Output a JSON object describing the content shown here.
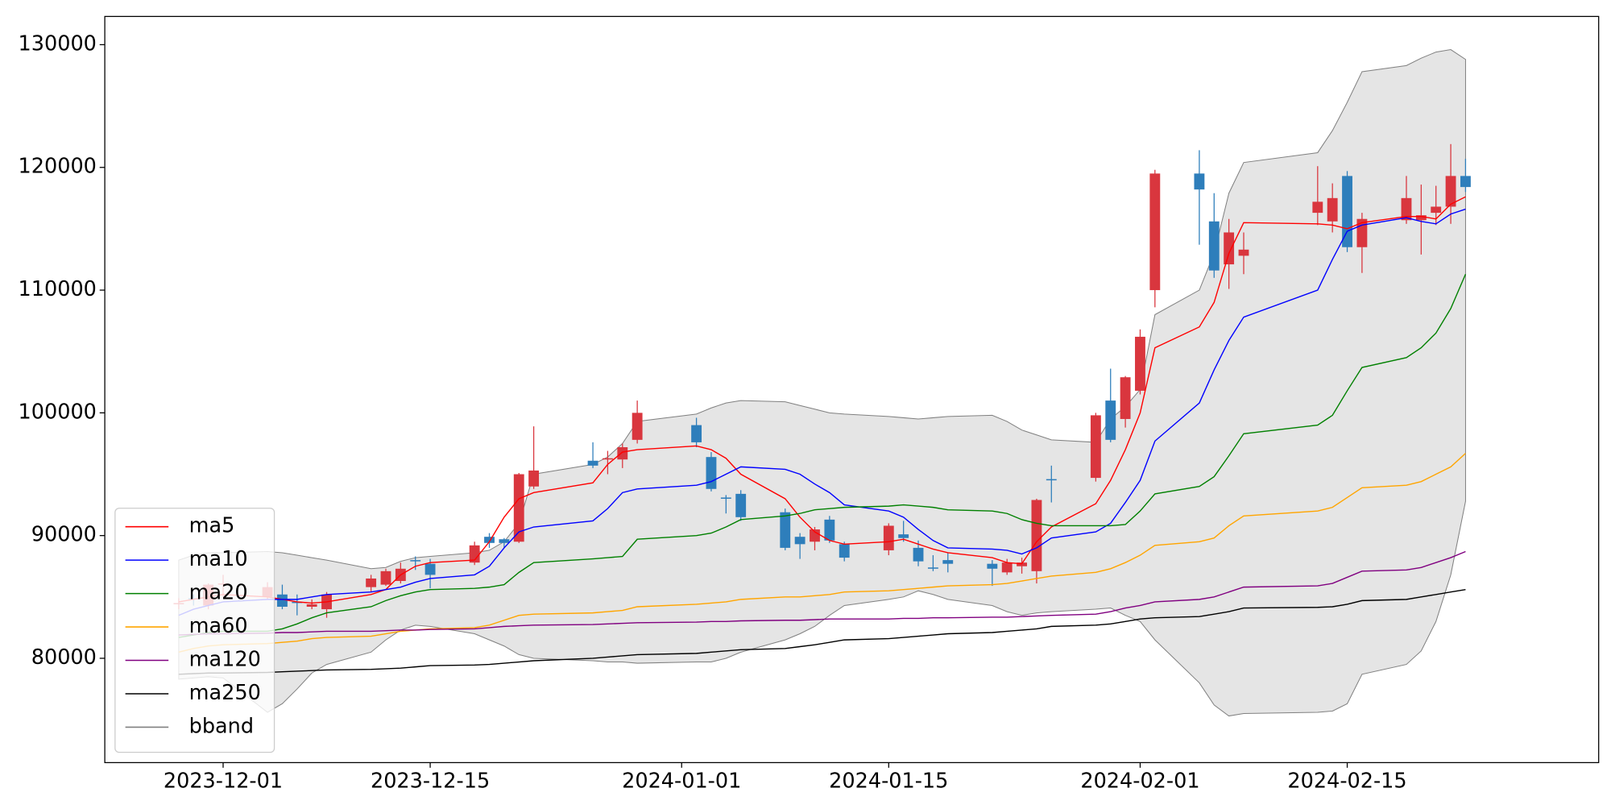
{
  "chart_data": {
    "type": "candlestick",
    "x": [
      "2023-11-28",
      "2023-11-29",
      "2023-11-30",
      "2023-12-01",
      "2023-12-04",
      "2023-12-05",
      "2023-12-06",
      "2023-12-07",
      "2023-12-08",
      "2023-12-11",
      "2023-12-12",
      "2023-12-13",
      "2023-12-14",
      "2023-12-15",
      "2023-12-18",
      "2023-12-19",
      "2023-12-20",
      "2023-12-21",
      "2023-12-22",
      "2023-12-26",
      "2023-12-27",
      "2023-12-28",
      "2023-12-29",
      "2024-01-02",
      "2024-01-03",
      "2024-01-04",
      "2024-01-05",
      "2024-01-08",
      "2024-01-09",
      "2024-01-10",
      "2024-01-11",
      "2024-01-12",
      "2024-01-15",
      "2024-01-16",
      "2024-01-17",
      "2024-01-18",
      "2024-01-19",
      "2024-01-22",
      "2024-01-23",
      "2024-01-24",
      "2024-01-25",
      "2024-01-26",
      "2024-01-29",
      "2024-01-30",
      "2024-01-31",
      "2024-02-01",
      "2024-02-02",
      "2024-02-05",
      "2024-02-06",
      "2024-02-07",
      "2024-02-08",
      "2024-02-13",
      "2024-02-14",
      "2024-02-15",
      "2024-02-16",
      "2024-02-19",
      "2024-02-20",
      "2024-02-21",
      "2024-02-22",
      "2024-02-23"
    ],
    "candles": {
      "up_color": "#d9363e",
      "down_color": "#2e7ebb",
      "open": [
        84400,
        84900,
        84300,
        86000,
        85000,
        85200,
        84600,
        84200,
        84000,
        85800,
        86000,
        86300,
        88000,
        87700,
        87800,
        89900,
        89700,
        89500,
        94000,
        96100,
        96200,
        96200,
        97800,
        99000,
        96400,
        93100,
        93400,
        91900,
        89900,
        89500,
        91300,
        89300,
        88800,
        90100,
        89000,
        87400,
        88000,
        87700,
        87000,
        87500,
        87100,
        94600,
        94700,
        101000,
        99500,
        101800,
        110000,
        119500,
        115600,
        112100,
        112800,
        116300,
        115600,
        119300,
        113500,
        115700,
        115700,
        116300,
        116800,
        119300
      ],
      "high": [
        84900,
        85200,
        86100,
        86800,
        86200,
        86000,
        85200,
        84800,
        85400,
        86800,
        87300,
        87800,
        88300,
        88100,
        89500,
        90200,
        89800,
        95100,
        98900,
        97600,
        96900,
        97500,
        101000,
        99600,
        96800,
        93300,
        93700,
        92200,
        90200,
        90700,
        91600,
        89500,
        91000,
        91200,
        89600,
        88400,
        88600,
        88000,
        88100,
        88200,
        93000,
        95700,
        100000,
        103600,
        103000,
        106800,
        119800,
        121400,
        117900,
        115800,
        114700,
        120100,
        118700,
        119700,
        116300,
        119300,
        118600,
        118500,
        121900,
        120700
      ],
      "low": [
        84000,
        84300,
        84000,
        85000,
        84800,
        84000,
        83500,
        84000,
        83300,
        85400,
        85900,
        86100,
        87200,
        85700,
        87600,
        89000,
        89000,
        89400,
        93800,
        95500,
        95000,
        95500,
        97500,
        97200,
        93600,
        91800,
        91200,
        88800,
        88100,
        88800,
        89400,
        87900,
        88400,
        89500,
        87500,
        87100,
        87000,
        85900,
        86800,
        86900,
        86100,
        92700,
        94400,
        97600,
        98800,
        101500,
        108600,
        113700,
        111000,
        110100,
        111300,
        115300,
        114700,
        113100,
        111400,
        115400,
        112900,
        115300,
        115400,
        118000
      ],
      "close": [
        84500,
        84800,
        86000,
        86100,
        85800,
        84200,
        84500,
        84400,
        85200,
        86500,
        87100,
        87300,
        87900,
        86800,
        89200,
        89400,
        89400,
        95000,
        95300,
        95700,
        96300,
        97200,
        100000,
        97600,
        93800,
        93000,
        91500,
        89000,
        89300,
        90500,
        89600,
        88200,
        90800,
        89800,
        87900,
        87300,
        87700,
        87300,
        87800,
        87800,
        92900,
        94500,
        99800,
        97800,
        102900,
        106200,
        119500,
        118200,
        111600,
        114700,
        113300,
        117200,
        117500,
        113500,
        115800,
        117500,
        116100,
        116800,
        119300,
        118400
      ]
    },
    "series": [
      {
        "name": "ma5",
        "color": "#ff0000",
        "values": [
          84600,
          84800,
          85000,
          85200,
          85000,
          84800,
          84600,
          84500,
          84600,
          85200,
          85600,
          86800,
          87500,
          87800,
          88000,
          89500,
          91500,
          93000,
          93500,
          94300,
          95800,
          96800,
          97000,
          97300,
          97000,
          96300,
          95000,
          93000,
          91500,
          90300,
          89600,
          89300,
          89500,
          89700,
          89300,
          88900,
          88600,
          88200,
          87800,
          87700,
          89500,
          90700,
          92600,
          94500,
          97000,
          100000,
          105300,
          107000,
          109000,
          113000,
          115500,
          115400,
          115300,
          115000,
          115500,
          116000,
          116000,
          115800,
          117000,
          117600
        ]
      },
      {
        "name": "ma10",
        "color": "#0000ff",
        "values": [
          83500,
          84000,
          84300,
          84600,
          84800,
          84800,
          84800,
          85000,
          85200,
          85400,
          85600,
          85800,
          86200,
          86500,
          86800,
          87500,
          89000,
          90300,
          90700,
          91200,
          92200,
          93500,
          93800,
          94100,
          94400,
          95000,
          95600,
          95400,
          95000,
          94200,
          93500,
          92500,
          92000,
          91500,
          90500,
          89600,
          89000,
          88900,
          88800,
          88500,
          89000,
          89800,
          90300,
          91000,
          92700,
          94500,
          97700,
          100800,
          103500,
          105900,
          107800,
          110000,
          112500,
          114800,
          115300,
          115900,
          115600,
          115400,
          116200,
          116600
        ]
      },
      {
        "name": "ma20",
        "color": "#008000",
        "values": [
          81700,
          81900,
          82100,
          82200,
          82200,
          82400,
          82800,
          83300,
          83700,
          84200,
          84700,
          85100,
          85400,
          85600,
          85700,
          85800,
          86000,
          87000,
          87800,
          88100,
          88200,
          88300,
          89700,
          90000,
          90200,
          90700,
          91300,
          91600,
          91800,
          92100,
          92200,
          92300,
          92400,
          92500,
          92400,
          92300,
          92100,
          92000,
          91800,
          91300,
          91000,
          90800,
          90800,
          90800,
          90900,
          92000,
          93400,
          94000,
          94800,
          96500,
          98300,
          99000,
          99800,
          101800,
          103700,
          104500,
          105300,
          106500,
          108500,
          111300
        ]
      },
      {
        "name": "ma60",
        "color": "#ffa500",
        "values": [
          80500,
          80800,
          81000,
          81100,
          81200,
          81300,
          81400,
          81600,
          81700,
          81800,
          82000,
          82200,
          82300,
          82400,
          82500,
          82700,
          83100,
          83500,
          83600,
          83700,
          83800,
          83900,
          84200,
          84400,
          84500,
          84600,
          84800,
          85000,
          85000,
          85100,
          85200,
          85400,
          85500,
          85600,
          85700,
          85800,
          85900,
          86000,
          86100,
          86300,
          86500,
          86700,
          87000,
          87300,
          87800,
          88400,
          89200,
          89500,
          89800,
          90800,
          91600,
          92000,
          92300,
          93100,
          93900,
          94100,
          94400,
          95000,
          95600,
          96700
        ]
      },
      {
        "name": "ma120",
        "color": "#800080",
        "values": [
          81900,
          81950,
          82000,
          82000,
          82050,
          82100,
          82100,
          82150,
          82200,
          82200,
          82250,
          82300,
          82300,
          82350,
          82400,
          82500,
          82600,
          82650,
          82700,
          82750,
          82800,
          82850,
          82900,
          82950,
          83000,
          83000,
          83050,
          83100,
          83100,
          83150,
          83200,
          83200,
          83200,
          83250,
          83250,
          83300,
          83300,
          83350,
          83350,
          83400,
          83450,
          83500,
          83600,
          83800,
          84100,
          84300,
          84600,
          84800,
          85000,
          85400,
          85800,
          85900,
          86100,
          86600,
          87100,
          87200,
          87400,
          87800,
          88200,
          88700
        ]
      },
      {
        "name": "ma250",
        "color": "#000000",
        "values": [
          78700,
          78750,
          78800,
          78800,
          78850,
          78900,
          78950,
          79000,
          79050,
          79100,
          79150,
          79200,
          79300,
          79400,
          79450,
          79500,
          79600,
          79700,
          79800,
          80000,
          80100,
          80200,
          80300,
          80400,
          80500,
          80600,
          80700,
          80800,
          80950,
          81100,
          81300,
          81500,
          81600,
          81700,
          81800,
          81900,
          82000,
          82100,
          82200,
          82300,
          82400,
          82600,
          82700,
          82800,
          83000,
          83200,
          83300,
          83400,
          83600,
          83800,
          84100,
          84150,
          84200,
          84400,
          84700,
          84800,
          85000,
          85200,
          85400,
          85600
        ]
      }
    ],
    "bband": {
      "name": "bband",
      "color": "#808080",
      "fill": "#e5e5e5",
      "upper": [
        88000,
        88400,
        88600,
        88600,
        88700,
        88600,
        88400,
        88200,
        88000,
        87300,
        87400,
        87900,
        88200,
        88300,
        88600,
        88800,
        89500,
        91000,
        95000,
        95800,
        96400,
        97500,
        99300,
        99900,
        100400,
        100800,
        101000,
        100900,
        100600,
        100300,
        100000,
        99900,
        99700,
        99600,
        99500,
        99600,
        99700,
        99800,
        99300,
        98600,
        98200,
        97800,
        97600,
        99500,
        100500,
        101900,
        108000,
        110000,
        113000,
        117900,
        120400,
        121200,
        123000,
        125300,
        127800,
        128300,
        128900,
        129400,
        129600,
        128800
      ],
      "lower": [
        78300,
        78400,
        78500,
        78400,
        75600,
        76300,
        77500,
        78800,
        79500,
        80500,
        81500,
        82300,
        82700,
        82600,
        82000,
        81500,
        81000,
        80300,
        80000,
        79800,
        79700,
        79700,
        79600,
        79700,
        79700,
        80000,
        80500,
        81500,
        82000,
        82600,
        83500,
        84300,
        84800,
        85000,
        85500,
        85200,
        84800,
        84300,
        83800,
        83500,
        83700,
        83800,
        84000,
        84100,
        83500,
        83000,
        81500,
        78000,
        76200,
        75300,
        75500,
        75600,
        75700,
        76300,
        78700,
        79500,
        80600,
        83000,
        86800,
        92800
      ]
    },
    "xlim": [
      "2023-11-23",
      "2024-03-03"
    ],
    "xticks": [
      "2023-12-01",
      "2023-12-15",
      "2024-01-01",
      "2024-01-15",
      "2024-02-01",
      "2024-02-15"
    ],
    "ylim": [
      71500,
      132300
    ],
    "yticks": [
      80000,
      90000,
      100000,
      110000,
      120000,
      130000
    ],
    "legend": "lower left"
  }
}
